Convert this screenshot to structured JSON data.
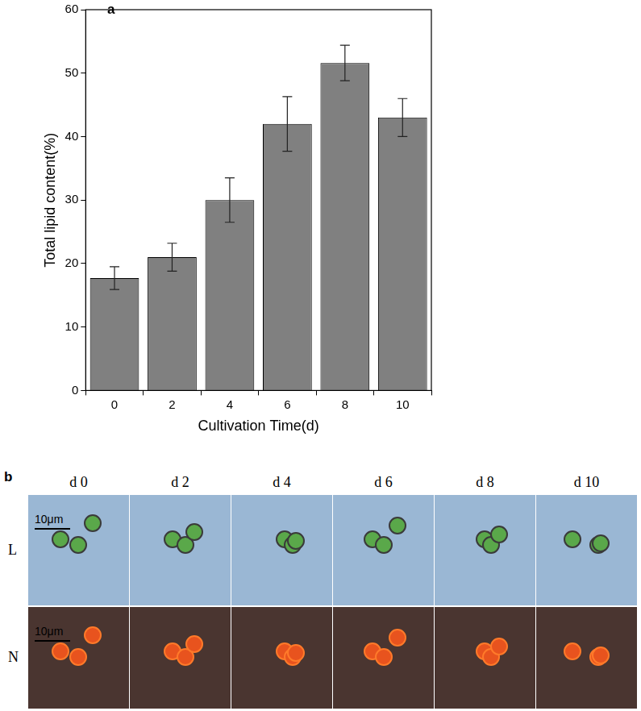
{
  "chart_data": {
    "type": "bar",
    "panel_label": "a",
    "x_label": "Cultivation Time(d)",
    "y_label": "Total lipid content(%)",
    "categories": [
      0,
      2,
      4,
      6,
      8,
      10
    ],
    "values": [
      17.7,
      21.0,
      30.0,
      42.0,
      51.6,
      43.0
    ],
    "errors": [
      1.8,
      2.2,
      3.5,
      4.3,
      2.8,
      3.0
    ],
    "color": "#808080",
    "ylim": [
      0,
      60
    ],
    "yticks": [
      0,
      10,
      20,
      30,
      40,
      50,
      60
    ],
    "grid": false
  },
  "micrographs": {
    "panel_label": "b",
    "columns": [
      "d 0",
      "d 2",
      "d 4",
      "d 6",
      "d 8",
      "d 10"
    ],
    "rows": [
      "L",
      "N"
    ],
    "scale_bar": "10μm"
  }
}
